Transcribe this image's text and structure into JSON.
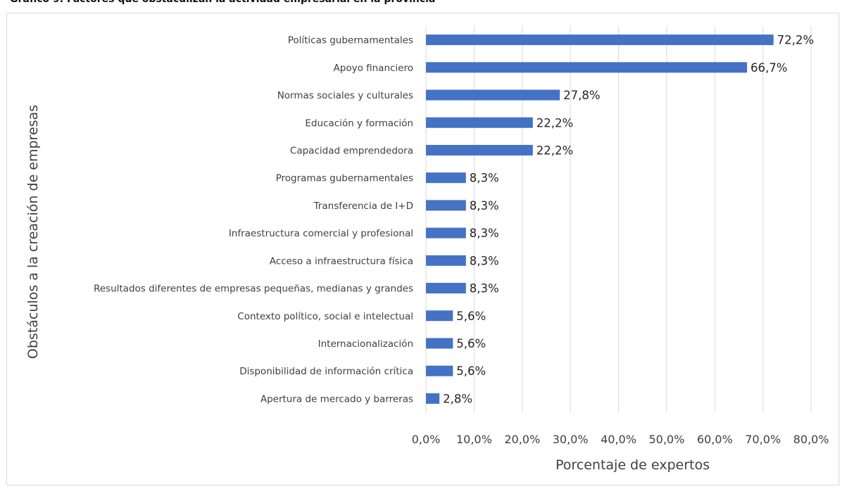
{
  "page_title_fragment": "Gráfico 9. Factores que obstaculizan la actividad empresarial en la provincia",
  "chart_data": {
    "type": "bar",
    "orientation": "horizontal",
    "title": "",
    "xlabel": "Porcentaje de expertos",
    "ylabel": "Obstáculos a la creación de empresas",
    "xlim": [
      0,
      80
    ],
    "x_ticks": [
      "0,0%",
      "10,0%",
      "20,0%",
      "30,0%",
      "40,0%",
      "50,0%",
      "60,0%",
      "70,0%",
      "80,0%"
    ],
    "grid": true,
    "bar_color": "#4472c4",
    "categories": [
      "Políticas gubernamentales",
      "Apoyo financiero",
      "Normas sociales y culturales",
      "Educación y formación",
      "Capacidad emprendedora",
      "Programas gubernamentales",
      "Transferencia de I+D",
      "Infraestructura comercial y profesional",
      "Acceso a infraestructura física",
      "Resultados diferentes de empresas pequeñas, medianas y grandes",
      "Contexto político, social e intelectual",
      "Internacionalización",
      "Disponibilidad de información crítica",
      "Apertura de mercado y barreras"
    ],
    "values": [
      72.2,
      66.7,
      27.8,
      22.2,
      22.2,
      8.3,
      8.3,
      8.3,
      8.3,
      8.3,
      5.6,
      5.6,
      5.6,
      2.8
    ],
    "data_labels": [
      "72,2%",
      "66,7%",
      "27,8%",
      "22,2%",
      "22,2%",
      "8,3%",
      "8,3%",
      "8,3%",
      "8,3%",
      "8,3%",
      "5,6%",
      "5,6%",
      "5,6%",
      "2,8%"
    ]
  }
}
